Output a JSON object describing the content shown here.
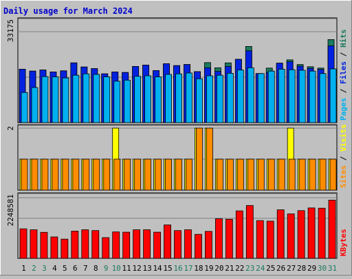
{
  "chart_data": {
    "type": "bar",
    "title": "Daily usage for March 2024",
    "colors": {
      "hits": "#1a7a5e",
      "files": "#0022e0",
      "pages": "#00b0f0",
      "visits": "#ffff00",
      "sites": "#ff8c00",
      "kbytes": "#ff0000",
      "title": "#0000cc",
      "plot_bg": "#c0c0c0",
      "weekend_day": "#1a7a5e",
      "weekday_day": "#000000"
    },
    "categories": [
      "1",
      "2",
      "3",
      "4",
      "5",
      "6",
      "7",
      "8",
      "9",
      "10",
      "11",
      "12",
      "13",
      "14",
      "15",
      "16",
      "17",
      "18",
      "19",
      "20",
      "21",
      "22",
      "23",
      "24",
      "25",
      "26",
      "27",
      "28",
      "29",
      "30",
      "31"
    ],
    "weekend_days": [
      "2",
      "3",
      "9",
      "10",
      "16",
      "17",
      "23",
      "24",
      "30",
      "31"
    ],
    "panels": [
      {
        "name": "hits-files-pages",
        "max_label": "33175",
        "ymax": 33175,
        "axis_label": {
          "parts": [
            "Pages",
            "Files",
            "Hits"
          ],
          "separator": " / "
        },
        "series": [
          {
            "name": "Hits",
            "key": "hits",
            "values": [
              19500,
              18800,
              19200,
              18500,
              18900,
              21800,
              20300,
              19700,
              17800,
              18500,
              18300,
              20500,
              21000,
              19000,
              21500,
              20800,
              21200,
              18600,
              21900,
              20000,
              21800,
              23100,
              27800,
              17900,
              19900,
              21700,
              22900,
              21200,
              20400,
              19900,
              30300
            ]
          },
          {
            "name": "Files",
            "key": "files",
            "values": [
              19500,
              18800,
              19200,
              18500,
              18900,
              21800,
              20300,
              19700,
              17800,
              18500,
              18300,
              20500,
              21000,
              19000,
              21500,
              20800,
              21200,
              18600,
              20000,
              18700,
              20500,
              23100,
              26200,
              17900,
              18300,
              21700,
              22200,
              20600,
              19800,
              19400,
              28000
            ]
          },
          {
            "name": "Pages",
            "key": "pages",
            "values": [
              11000,
              12800,
              16800,
              16700,
              16300,
              17300,
              17800,
              17600,
              16700,
              15100,
              15500,
              16900,
              17100,
              16700,
              17600,
              17800,
              18100,
              16000,
              17100,
              17300,
              18000,
              19200,
              20000,
              17900,
              18800,
              19500,
              19300,
              19100,
              18800,
              17900,
              19600
            ]
          }
        ]
      },
      {
        "name": "visits-sites",
        "max_label": "2",
        "ymax": 2,
        "axis_label": {
          "parts": [
            "Sites",
            "Visits"
          ],
          "separator": " / "
        },
        "series": [
          {
            "name": "Visits",
            "key": "visits",
            "values": [
              1,
              1,
              1,
              1,
              1,
              1,
              1,
              1,
              1,
              2,
              1,
              1,
              1,
              1,
              1,
              1,
              1,
              2,
              2,
              1,
              1,
              1,
              1,
              1,
              1,
              1,
              2,
              1,
              1,
              1,
              1
            ]
          },
          {
            "name": "Sites",
            "key": "sites",
            "values": [
              1,
              1,
              1,
              1,
              1,
              1,
              1,
              1,
              1,
              1,
              1,
              1,
              1,
              1,
              1,
              1,
              1,
              2,
              2,
              1,
              1,
              1,
              1,
              1,
              1,
              1,
              1,
              1,
              1,
              1,
              1
            ]
          }
        ]
      },
      {
        "name": "kbytes",
        "max_label": "2248581",
        "ymax": 2248581,
        "axis_label": {
          "parts": [
            "KBytes"
          ],
          "separator": ""
        },
        "series": [
          {
            "name": "KBytes",
            "key": "kbytes",
            "values": [
              1095000,
              1060000,
              965000,
              794000,
              712000,
              1010000,
              1060000,
              1030000,
              768000,
              980000,
              970000,
              1060000,
              1060000,
              970000,
              1240000,
              1030000,
              1060000,
              890000,
              1000000,
              1470000,
              1450000,
              1760000,
              1960000,
              1400000,
              1380000,
              1800000,
              1650000,
              1770000,
              1870000,
              1860000,
              2160000
            ]
          }
        ]
      }
    ]
  }
}
